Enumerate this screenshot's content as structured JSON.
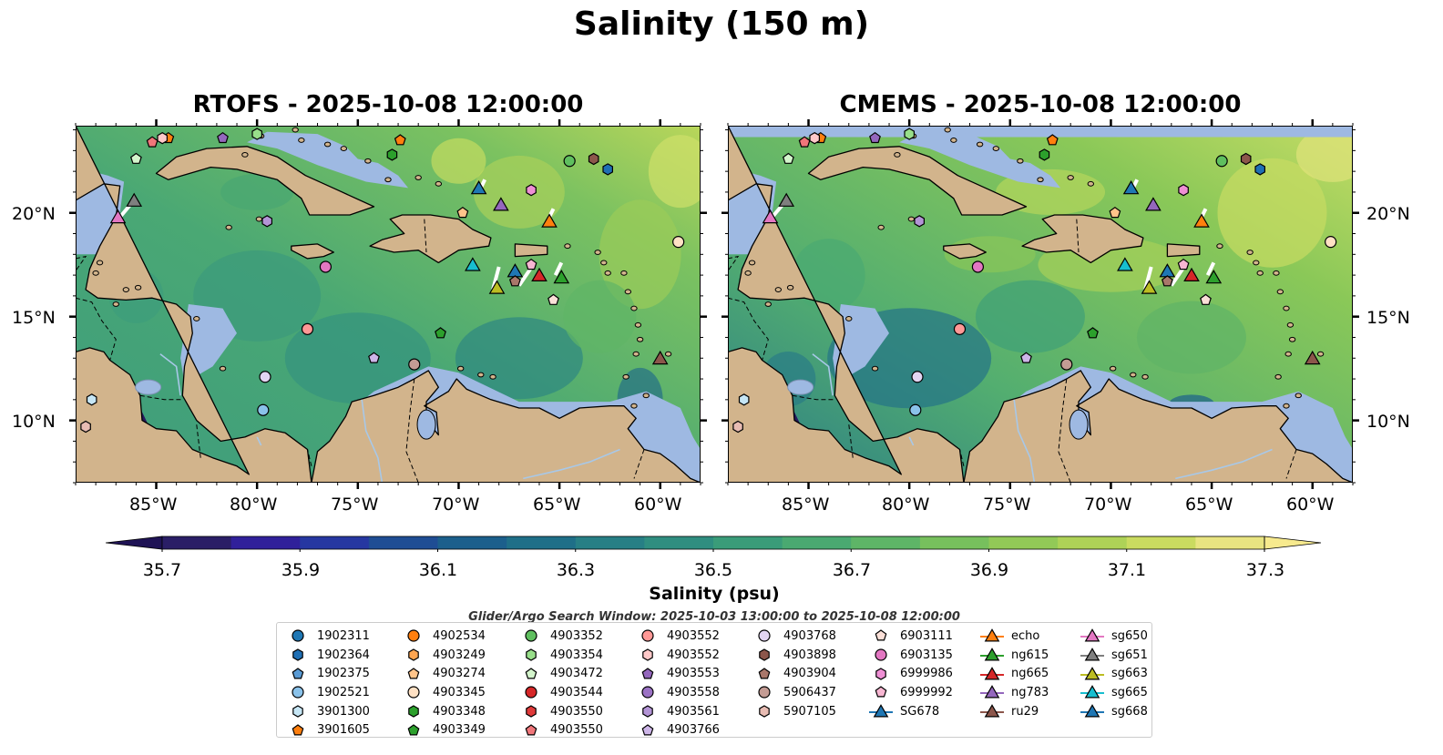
{
  "title": "Salinity (150 m)",
  "panels": [
    {
      "title": "RTOFS - 2025-10-08 12:00:00"
    },
    {
      "title": "CMEMS - 2025-10-08 12:00:00"
    }
  ],
  "axes": {
    "lon_ticks": [
      "85°W",
      "80°W",
      "75°W",
      "70°W",
      "65°W",
      "60°W"
    ],
    "lat_ticks": [
      "20°N",
      "15°N",
      "10°N"
    ]
  },
  "colorbar": {
    "label": "Salinity (psu)",
    "ticks": [
      "35.7",
      "35.9",
      "36.1",
      "36.3",
      "36.5",
      "36.7",
      "36.9",
      "37.1",
      "37.3"
    ],
    "colors": [
      "#2a1e66",
      "#30209a",
      "#2637a1",
      "#1f4d94",
      "#1c5f8c",
      "#1f6f88",
      "#277f85",
      "#2f8e80",
      "#3a9c79",
      "#4aa971",
      "#5eb567",
      "#77c05d",
      "#92c957",
      "#aed257",
      "#cadb60",
      "#e8e481"
    ],
    "under_color": "#1f1355",
    "over_color": "#f7ea8e"
  },
  "search_window": "Glider/Argo Search Window: 2025-10-03 13:00:00 to 2025-10-08 12:00:00",
  "legend": {
    "columns": [
      [
        {
          "label": "1902311",
          "marker": "circle",
          "color": "#1f77b4"
        },
        {
          "label": "1902364",
          "marker": "hexagon",
          "color": "#1f6fb4"
        },
        {
          "label": "1902375",
          "marker": "pentagon",
          "color": "#5a9bd5"
        },
        {
          "label": "1902521",
          "marker": "circle",
          "color": "#8ac2ea"
        },
        {
          "label": "3901300",
          "marker": "hexagon",
          "color": "#c6e6f5"
        },
        {
          "label": "3901605",
          "marker": "pentagon",
          "color": "#ff7f0e"
        }
      ],
      [
        {
          "label": "4902534",
          "marker": "circle",
          "color": "#ff7f0e"
        },
        {
          "label": "4903249",
          "marker": "hexagon",
          "color": "#ffa550"
        },
        {
          "label": "4903274",
          "marker": "pentagon",
          "color": "#ffc48a"
        },
        {
          "label": "4903345",
          "marker": "circle",
          "color": "#ffe1c4"
        },
        {
          "label": "4903348",
          "marker": "hexagon",
          "color": "#2ca02c"
        },
        {
          "label": "4903349",
          "marker": "pentagon",
          "color": "#2ca02c"
        }
      ],
      [
        {
          "label": "4903352",
          "marker": "circle",
          "color": "#5fbf5f"
        },
        {
          "label": "4903354",
          "marker": "hexagon",
          "color": "#98df8a"
        },
        {
          "label": "4903472",
          "marker": "pentagon",
          "color": "#d4f5cc"
        },
        {
          "label": "4903544",
          "marker": "circle",
          "color": "#d62728"
        },
        {
          "label": "4903550",
          "marker": "hexagon",
          "color": "#e03a3a"
        },
        {
          "label": "4903550",
          "marker": "pentagon",
          "color": "#f0767a"
        }
      ],
      [
        {
          "label": "4903552",
          "marker": "circle",
          "color": "#ff9896"
        },
        {
          "label": "4903552",
          "marker": "hexagon",
          "color": "#ffc9c9"
        },
        {
          "label": "4903553",
          "marker": "pentagon",
          "color": "#9467bd"
        },
        {
          "label": "4903558",
          "marker": "circle",
          "color": "#9b72c4"
        },
        {
          "label": "4903561",
          "marker": "hexagon",
          "color": "#b394d6"
        },
        {
          "label": "4903766",
          "marker": "pentagon",
          "color": "#cdb5e8"
        }
      ],
      [
        {
          "label": "4903768",
          "marker": "circle",
          "color": "#e3d5f2"
        },
        {
          "label": "4903898",
          "marker": "hexagon",
          "color": "#8c564b"
        },
        {
          "label": "4903904",
          "marker": "pentagon",
          "color": "#a9776a"
        },
        {
          "label": "5906437",
          "marker": "circle",
          "color": "#c49c94"
        },
        {
          "label": "5907105",
          "marker": "hexagon",
          "color": "#e8bcb3"
        }
      ],
      [
        {
          "label": "6903111",
          "marker": "pentagon",
          "color": "#fbe0d8"
        },
        {
          "label": "6903135",
          "marker": "circle",
          "color": "#e377c2"
        },
        {
          "label": "6999986",
          "marker": "hexagon",
          "color": "#ee8fd4"
        },
        {
          "label": "6999992",
          "marker": "pentagon",
          "color": "#f7b6d2"
        },
        {
          "label": "SG678",
          "marker": "triangle-line",
          "color": "#1f77b4"
        }
      ],
      [
        {
          "label": "echo",
          "marker": "triangle-line",
          "color": "#ff7f0e"
        },
        {
          "label": "ng615",
          "marker": "triangle-line",
          "color": "#2ca02c"
        },
        {
          "label": "ng665",
          "marker": "triangle-line",
          "color": "#d62728"
        },
        {
          "label": "ng783",
          "marker": "triangle-line",
          "color": "#9467bd"
        },
        {
          "label": "ru29",
          "marker": "triangle-line",
          "color": "#8c564b"
        }
      ],
      [
        {
          "label": "sg650",
          "marker": "triangle-line",
          "color": "#e377c2"
        },
        {
          "label": "sg651",
          "marker": "triangle-line",
          "color": "#7f7f7f"
        },
        {
          "label": "sg663",
          "marker": "triangle-line",
          "color": "#bcbd22"
        },
        {
          "label": "sg665",
          "marker": "triangle-line",
          "color": "#17becf"
        },
        {
          "label": "sg668",
          "marker": "triangle-line",
          "color": "#1f77b4"
        }
      ]
    ]
  },
  "markers": [
    {
      "name": "3901605",
      "shape": "pentagon",
      "color": "#ff7f0e",
      "lon": -84.4,
      "lat": 23.6
    },
    {
      "name": "4903550",
      "shape": "pentagon",
      "color": "#f0767a",
      "lon": -85.2,
      "lat": 23.4
    },
    {
      "name": "4903552",
      "shape": "hexagon",
      "color": "#ffc9c9",
      "lon": -84.7,
      "lat": 23.6
    },
    {
      "name": "4903553",
      "shape": "pentagon",
      "color": "#9467bd",
      "lon": -81.7,
      "lat": 23.6
    },
    {
      "name": "4903354",
      "shape": "hexagon",
      "color": "#98df8a",
      "lon": -80.0,
      "lat": 23.8
    },
    {
      "name": "3901605",
      "shape": "pentagon",
      "color": "#ff7f0e",
      "lon": -72.9,
      "lat": 23.5
    },
    {
      "name": "4903472",
      "shape": "pentagon",
      "color": "#d4f5cc",
      "lon": -86.0,
      "lat": 22.6
    },
    {
      "name": "4903348",
      "shape": "hexagon",
      "color": "#2ca02c",
      "lon": -73.3,
      "lat": 22.8
    },
    {
      "name": "4903352",
      "shape": "circle",
      "color": "#5fbf5f",
      "lon": -64.5,
      "lat": 22.5
    },
    {
      "name": "4903898",
      "shape": "hexagon",
      "color": "#8c564b",
      "lon": -63.3,
      "lat": 22.6
    },
    {
      "name": "1902364",
      "shape": "hexagon",
      "color": "#1f6fb4",
      "lon": -62.6,
      "lat": 22.1
    },
    {
      "name": "sg651",
      "shape": "triangle",
      "color": "#7f7f7f",
      "lon": -86.1,
      "lat": 20.6
    },
    {
      "name": "sg650",
      "shape": "triangle",
      "color": "#e377c2",
      "lon": -86.9,
      "lat": 19.8
    },
    {
      "name": "sg668",
      "shape": "triangle",
      "color": "#1f77b4",
      "lon": -69.0,
      "lat": 21.2
    },
    {
      "name": "ng783",
      "shape": "triangle",
      "color": "#9467bd",
      "lon": -67.9,
      "lat": 20.4
    },
    {
      "name": "6999986",
      "shape": "hexagon",
      "color": "#ee8fd4",
      "lon": -66.4,
      "lat": 21.1
    },
    {
      "name": "echo",
      "shape": "triangle",
      "color": "#ff7f0e",
      "lon": -65.5,
      "lat": 19.6
    },
    {
      "name": "4903274",
      "shape": "pentagon",
      "color": "#ffc48a",
      "lon": -69.8,
      "lat": 20.0
    },
    {
      "name": "4903561",
      "shape": "hexagon",
      "color": "#b394d6",
      "lon": -79.5,
      "lat": 19.6
    },
    {
      "name": "4903345",
      "shape": "circle",
      "color": "#ffe1c4",
      "lon": -59.1,
      "lat": 18.6
    },
    {
      "name": "6903135",
      "shape": "circle",
      "color": "#e377c2",
      "lon": -76.6,
      "lat": 17.4
    },
    {
      "name": "sg665",
      "shape": "triangle",
      "color": "#17becf",
      "lon": -69.3,
      "lat": 17.5
    },
    {
      "name": "SG678",
      "shape": "triangle",
      "color": "#1f77b4",
      "lon": -67.2,
      "lat": 17.2
    },
    {
      "name": "6999992",
      "shape": "pentagon",
      "color": "#f7b6d2",
      "lon": -66.4,
      "lat": 17.5
    },
    {
      "name": "ng665",
      "shape": "triangle",
      "color": "#d62728",
      "lon": -66.0,
      "lat": 17.0
    },
    {
      "name": "ng615",
      "shape": "triangle",
      "color": "#2ca02c",
      "lon": -64.9,
      "lat": 16.9
    },
    {
      "name": "4903904",
      "shape": "pentagon",
      "color": "#a9776a",
      "lon": -67.2,
      "lat": 16.7
    },
    {
      "name": "sg663",
      "shape": "triangle",
      "color": "#bcbd22",
      "lon": -68.1,
      "lat": 16.4
    },
    {
      "name": "6903111",
      "shape": "pentagon",
      "color": "#fbe0d8",
      "lon": -65.3,
      "lat": 15.8
    },
    {
      "name": "4903552",
      "shape": "circle",
      "color": "#ff9896",
      "lon": -77.5,
      "lat": 14.4
    },
    {
      "name": "4903349",
      "shape": "pentagon",
      "color": "#2ca02c",
      "lon": -70.9,
      "lat": 14.2
    },
    {
      "name": "4903766",
      "shape": "pentagon",
      "color": "#cdb5e8",
      "lon": -74.2,
      "lat": 13.0
    },
    {
      "name": "5906437",
      "shape": "circle",
      "color": "#c49c94",
      "lon": -72.2,
      "lat": 12.7
    },
    {
      "name": "ru29",
      "shape": "triangle",
      "color": "#8c564b",
      "lon": -60.0,
      "lat": 13.0
    },
    {
      "name": "4903768",
      "shape": "circle",
      "color": "#e3d5f2",
      "lon": -79.6,
      "lat": 12.1
    },
    {
      "name": "1902521",
      "shape": "circle",
      "color": "#8ac2ea",
      "lon": -79.7,
      "lat": 10.5
    },
    {
      "name": "3901300",
      "shape": "hexagon",
      "color": "#c6e6f5",
      "lon": -88.2,
      "lat": 11.0
    },
    {
      "name": "5907105",
      "shape": "hexagon",
      "color": "#e8bcb3",
      "lon": -88.5,
      "lat": 9.7
    }
  ]
}
